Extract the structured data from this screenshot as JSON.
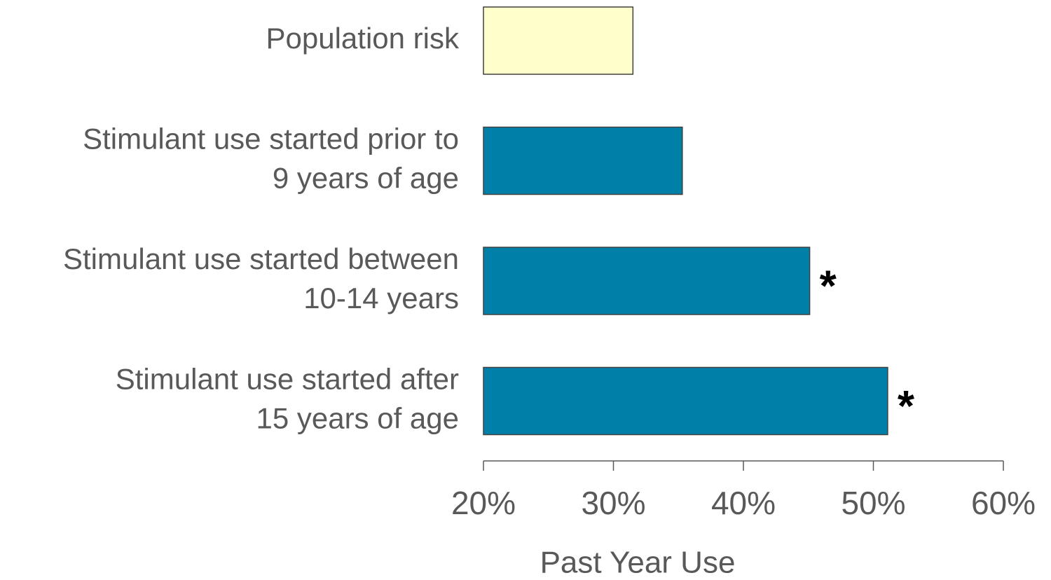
{
  "chart_data": {
    "type": "barh",
    "categories": [
      "Population risk",
      "Stimulant use started prior to\n9 years of age",
      "Stimulant use started between\n10-14 years",
      "Stimulant use started after\n15 years of age"
    ],
    "values": [
      31.5,
      35.3,
      45.1,
      51.1
    ],
    "colors": [
      "#ffffcc",
      "#0080a8",
      "#0080a8",
      "#0080a8"
    ],
    "value_annotations": [
      null,
      null,
      "*",
      "*"
    ],
    "xlabel": "Past Year Use",
    "xlim": [
      20,
      60
    ],
    "xticks": [
      {
        "value": 20,
        "label": "20%"
      },
      {
        "value": 30,
        "label": "30%"
      },
      {
        "value": 40,
        "label": "40%"
      },
      {
        "value": 50,
        "label": "50%"
      },
      {
        "value": 60,
        "label": "60%"
      }
    ]
  }
}
